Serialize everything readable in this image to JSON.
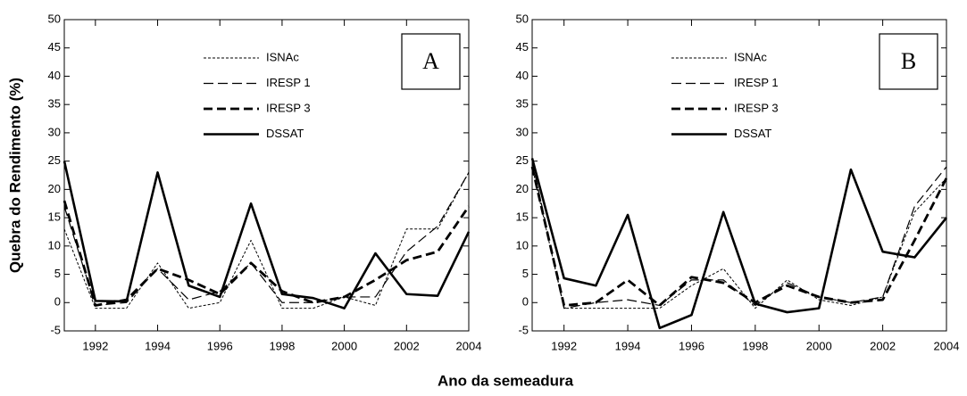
{
  "chart_data": [
    {
      "type": "line",
      "label": "A",
      "ylabel": "Quebra do Rendimento (%)",
      "xlabel": "Ano da semeadura",
      "x": [
        1991,
        1992,
        1993,
        1994,
        1995,
        1996,
        1997,
        1998,
        1999,
        2000,
        2001,
        2002,
        2003,
        2004
      ],
      "xlim": [
        1991,
        2004
      ],
      "xticks": [
        1992,
        1994,
        1996,
        1998,
        2000,
        2002,
        2004
      ],
      "ylim": [
        -5,
        50
      ],
      "yticks": [
        -5,
        0,
        5,
        10,
        15,
        20,
        25,
        30,
        35,
        40,
        45,
        50
      ],
      "series": [
        {
          "name": "ISNAc",
          "color": "#000",
          "style": "dotted",
          "values": [
            13,
            -1,
            -1,
            7,
            -1,
            0,
            11,
            -1,
            -1,
            1,
            -0.5,
            13,
            13,
            23
          ]
        },
        {
          "name": "IRESP 1",
          "color": "#000",
          "style": "dashed",
          "values": [
            17,
            -0.5,
            0,
            6,
            0.5,
            2,
            7,
            0,
            0,
            1,
            1,
            9,
            13.5,
            23
          ]
        },
        {
          "name": "IRESP 3",
          "color": "#000",
          "style": "thick-dashed",
          "values": [
            18,
            -0.5,
            0.5,
            6,
            4,
            1.5,
            7,
            2,
            0,
            1,
            4,
            7.5,
            9,
            17
          ]
        },
        {
          "name": "DSSAT",
          "color": "#000",
          "style": "solid",
          "values": [
            25,
            0.3,
            0.2,
            23,
            3,
            1,
            17.5,
            1.5,
            0.8,
            -1,
            8.7,
            1.5,
            1.2,
            12.5
          ]
        }
      ]
    },
    {
      "type": "line",
      "label": "B",
      "x": [
        1991,
        1992,
        1993,
        1994,
        1995,
        1996,
        1997,
        1998,
        1999,
        2000,
        2001,
        2002,
        2003,
        2004
      ],
      "xlim": [
        1991,
        2004
      ],
      "xticks": [
        1992,
        1994,
        1996,
        1998,
        2000,
        2002,
        2004
      ],
      "ylim": [
        -5,
        50
      ],
      "yticks": [
        -5,
        0,
        5,
        10,
        15,
        20,
        25,
        30,
        35,
        40,
        45,
        50
      ],
      "series": [
        {
          "name": "ISNAc",
          "color": "#000",
          "style": "dotted",
          "values": [
            24,
            -1,
            -1,
            -1,
            -1,
            3,
            6,
            -1,
            4,
            0.5,
            -0.5,
            1,
            16,
            22
          ]
        },
        {
          "name": "IRESP 1",
          "color": "#000",
          "style": "dashed",
          "values": [
            25,
            -1,
            0,
            0.5,
            -0.5,
            4,
            4,
            -0.5,
            3.5,
            1,
            0,
            1,
            17,
            24
          ]
        },
        {
          "name": "IRESP 3",
          "color": "#000",
          "style": "thick-dashed",
          "values": [
            24,
            -0.5,
            0,
            4,
            -0.5,
            4.5,
            3.5,
            0,
            3,
            1,
            0,
            0.5,
            11,
            22
          ]
        },
        {
          "name": "DSSAT",
          "color": "#000",
          "style": "solid",
          "values": [
            25.5,
            4.3,
            3,
            15.5,
            -4.5,
            -2.2,
            16,
            -0.2,
            -1.7,
            -1,
            23.5,
            9,
            8,
            15
          ]
        }
      ]
    }
  ]
}
